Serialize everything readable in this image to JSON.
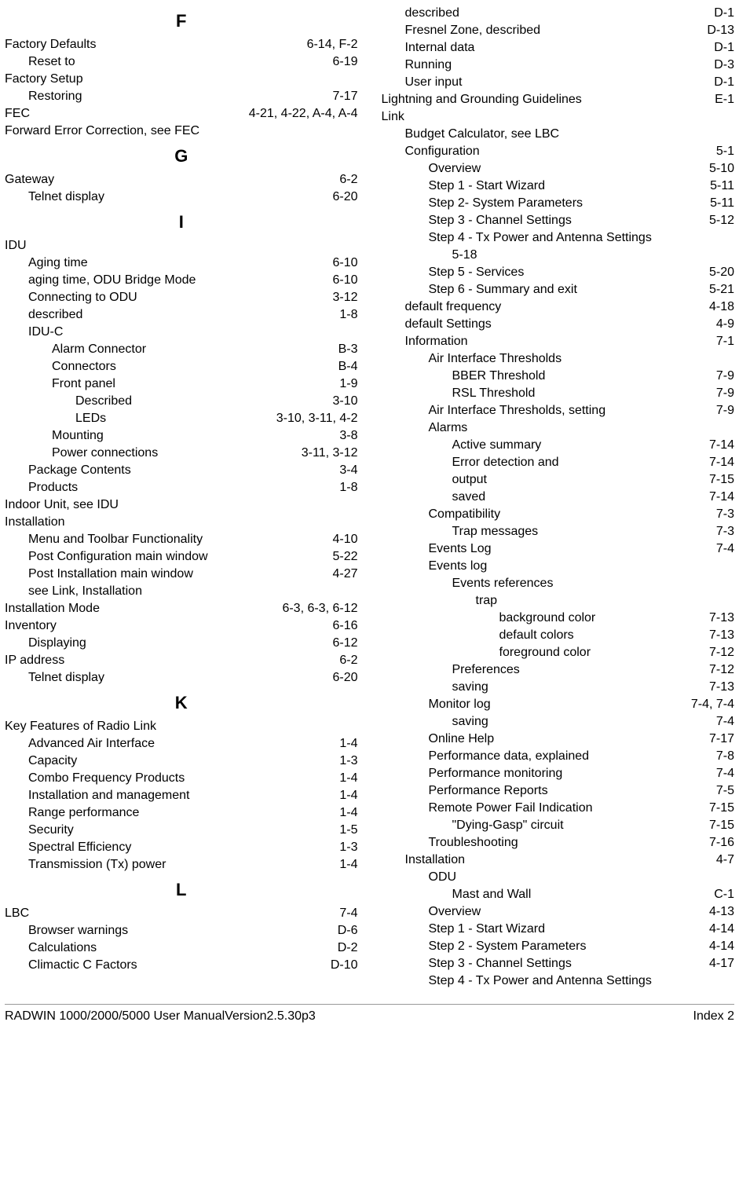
{
  "footer": {
    "left": "RADWIN 1000/2000/5000 User ManualVersion2.5.30p3",
    "right": "Index 2"
  },
  "left_col": [
    {
      "type": "letter",
      "text": "F"
    },
    {
      "type": "row",
      "indent": 0,
      "label": "Factory Defaults",
      "page": "6-14, F-2"
    },
    {
      "type": "row",
      "indent": 1,
      "label": "Reset to",
      "page": "6-19"
    },
    {
      "type": "row",
      "indent": 0,
      "label": "Factory Setup",
      "page": ""
    },
    {
      "type": "row",
      "indent": 1,
      "label": "Restoring",
      "page": "7-17"
    },
    {
      "type": "row",
      "indent": 0,
      "label": "FEC",
      "page": "4-21, 4-22, A-4, A-4"
    },
    {
      "type": "row",
      "indent": 0,
      "label": "Forward Error Correction, see FEC",
      "page": ""
    },
    {
      "type": "letter",
      "text": "G"
    },
    {
      "type": "row",
      "indent": 0,
      "label": "Gateway",
      "page": "6-2"
    },
    {
      "type": "row",
      "indent": 1,
      "label": "Telnet display",
      "page": "6-20"
    },
    {
      "type": "letter",
      "text": "I"
    },
    {
      "type": "row",
      "indent": 0,
      "label": "IDU",
      "page": ""
    },
    {
      "type": "row",
      "indent": 1,
      "label": "Aging time",
      "page": "6-10"
    },
    {
      "type": "row",
      "indent": 1,
      "label": "aging time, ODU Bridge Mode",
      "page": "6-10"
    },
    {
      "type": "row",
      "indent": 1,
      "label": "Connecting to ODU",
      "page": "3-12"
    },
    {
      "type": "row",
      "indent": 1,
      "label": "described",
      "page": "1-8"
    },
    {
      "type": "row",
      "indent": 1,
      "label": "IDU-C",
      "page": ""
    },
    {
      "type": "row",
      "indent": 2,
      "label": "Alarm Connector",
      "page": "B-3"
    },
    {
      "type": "row",
      "indent": 2,
      "label": "Connectors",
      "page": "B-4"
    },
    {
      "type": "row",
      "indent": 2,
      "label": "Front panel",
      "page": "1-9"
    },
    {
      "type": "row",
      "indent": 3,
      "label": "Described",
      "page": "3-10"
    },
    {
      "type": "row",
      "indent": 3,
      "label": "LEDs",
      "page": "3-10, 3-11, 4-2"
    },
    {
      "type": "row",
      "indent": 2,
      "label": "Mounting",
      "page": "3-8"
    },
    {
      "type": "row",
      "indent": 2,
      "label": "Power connections",
      "page": "3-11, 3-12"
    },
    {
      "type": "row",
      "indent": 1,
      "label": "Package Contents",
      "page": "3-4"
    },
    {
      "type": "row",
      "indent": 1,
      "label": "Products",
      "page": "1-8"
    },
    {
      "type": "row",
      "indent": 0,
      "label": "Indoor Unit, see IDU",
      "page": ""
    },
    {
      "type": "row",
      "indent": 0,
      "label": "Installation",
      "page": ""
    },
    {
      "type": "row",
      "indent": 1,
      "label": "Menu and Toolbar Functionality",
      "page": "4-10"
    },
    {
      "type": "row",
      "indent": 1,
      "label": "Post Configuration main window",
      "page": "5-22"
    },
    {
      "type": "row",
      "indent": 1,
      "label": "Post Installation main window",
      "page": "4-27"
    },
    {
      "type": "row",
      "indent": 1,
      "label": "see Link, Installation",
      "page": ""
    },
    {
      "type": "row",
      "indent": 0,
      "label": "Installation Mode",
      "page": "6-3, 6-3, 6-12"
    },
    {
      "type": "row",
      "indent": 0,
      "label": "Inventory",
      "page": "6-16"
    },
    {
      "type": "row",
      "indent": 1,
      "label": "Displaying",
      "page": "6-12"
    },
    {
      "type": "row",
      "indent": 0,
      "label": "IP address",
      "page": "6-2"
    },
    {
      "type": "row",
      "indent": 1,
      "label": "Telnet display",
      "page": "6-20"
    },
    {
      "type": "letter",
      "text": "K"
    },
    {
      "type": "row",
      "indent": 0,
      "label": "Key Features of Radio Link",
      "page": ""
    },
    {
      "type": "row",
      "indent": 1,
      "label": "Advanced Air Interface",
      "page": "1-4"
    },
    {
      "type": "row",
      "indent": 1,
      "label": "Capacity",
      "page": "1-3"
    },
    {
      "type": "row",
      "indent": 1,
      "label": "Combo Frequency Products",
      "page": "1-4"
    },
    {
      "type": "row",
      "indent": 1,
      "label": "Installation and management",
      "page": "1-4"
    },
    {
      "type": "row",
      "indent": 1,
      "label": "Range performance",
      "page": "1-4"
    },
    {
      "type": "row",
      "indent": 1,
      "label": "Security",
      "page": "1-5"
    },
    {
      "type": "row",
      "indent": 1,
      "label": "Spectral Efficiency",
      "page": "1-3"
    },
    {
      "type": "row",
      "indent": 1,
      "label": "Transmission (Tx) power",
      "page": "1-4"
    },
    {
      "type": "letter",
      "text": "L"
    },
    {
      "type": "row",
      "indent": 0,
      "label": "LBC",
      "page": "7-4"
    },
    {
      "type": "row",
      "indent": 1,
      "label": "Browser warnings",
      "page": "D-6"
    },
    {
      "type": "row",
      "indent": 1,
      "label": "Calculations",
      "page": "D-2"
    },
    {
      "type": "row",
      "indent": 1,
      "label": "Climactic C Factors",
      "page": "D-10"
    }
  ],
  "right_col": [
    {
      "type": "row",
      "indent": 1,
      "label": "described",
      "page": "D-1"
    },
    {
      "type": "row",
      "indent": 1,
      "label": "Fresnel Zone, described",
      "page": "D-13"
    },
    {
      "type": "row",
      "indent": 1,
      "label": "Internal data",
      "page": "D-1"
    },
    {
      "type": "row",
      "indent": 1,
      "label": "Running",
      "page": "D-3"
    },
    {
      "type": "row",
      "indent": 1,
      "label": "User input",
      "page": "D-1"
    },
    {
      "type": "row",
      "indent": 0,
      "label": "Lightning and Grounding Guidelines",
      "page": "E-1"
    },
    {
      "type": "row",
      "indent": 0,
      "label": "Link",
      "page": ""
    },
    {
      "type": "row",
      "indent": 1,
      "label": "Budget Calculator, see LBC",
      "page": ""
    },
    {
      "type": "row",
      "indent": 1,
      "label": "Configuration",
      "page": "5-1"
    },
    {
      "type": "row",
      "indent": 2,
      "label": "Overview",
      "page": "5-10"
    },
    {
      "type": "row",
      "indent": 2,
      "label": "Step 1 - Start Wizard",
      "page": "5-11"
    },
    {
      "type": "row",
      "indent": 2,
      "label": "Step 2- System Parameters",
      "page": "5-11"
    },
    {
      "type": "row",
      "indent": 2,
      "label": "Step 3 - Channel Settings",
      "page": "5-12"
    },
    {
      "type": "row",
      "indent": 2,
      "label": "Step 4 - Tx Power and Antenna Settings",
      "page": ""
    },
    {
      "type": "row",
      "indent": 3,
      "label": "5-18",
      "page": ""
    },
    {
      "type": "row",
      "indent": 2,
      "label": "Step 5 - Services",
      "page": "5-20"
    },
    {
      "type": "row",
      "indent": 2,
      "label": "Step 6 - Summary and exit",
      "page": "5-21"
    },
    {
      "type": "row",
      "indent": 1,
      "label": "default frequency",
      "page": "4-18"
    },
    {
      "type": "row",
      "indent": 1,
      "label": "default Settings",
      "page": "4-9"
    },
    {
      "type": "row",
      "indent": 1,
      "label": "Information",
      "page": "7-1"
    },
    {
      "type": "row",
      "indent": 2,
      "label": "Air Interface Thresholds",
      "page": ""
    },
    {
      "type": "row",
      "indent": 3,
      "label": "BBER Threshold",
      "page": "7-9"
    },
    {
      "type": "row",
      "indent": 3,
      "label": "RSL Threshold",
      "page": "7-9"
    },
    {
      "type": "row",
      "indent": 2,
      "label": "Air Interface Thresholds, setting",
      "page": "7-9"
    },
    {
      "type": "row",
      "indent": 2,
      "label": "Alarms",
      "page": ""
    },
    {
      "type": "row",
      "indent": 3,
      "label": "Active summary",
      "page": "7-14"
    },
    {
      "type": "row",
      "indent": 3,
      "label": "Error detection and",
      "page": "7-14"
    },
    {
      "type": "row",
      "indent": 3,
      "label": "output",
      "page": "7-15"
    },
    {
      "type": "row",
      "indent": 3,
      "label": "saved",
      "page": "7-14"
    },
    {
      "type": "row",
      "indent": 2,
      "label": "Compatibility",
      "page": "7-3"
    },
    {
      "type": "row",
      "indent": 3,
      "label": "Trap messages",
      "page": "7-3"
    },
    {
      "type": "row",
      "indent": 2,
      "label": "Events Log",
      "page": "7-4"
    },
    {
      "type": "row",
      "indent": 2,
      "label": "Events log",
      "page": ""
    },
    {
      "type": "row",
      "indent": 3,
      "label": "Events references",
      "page": ""
    },
    {
      "type": "row",
      "indent": 4,
      "label": "trap",
      "page": ""
    },
    {
      "type": "row",
      "indent": 5,
      "label": "background color",
      "page": "7-13"
    },
    {
      "type": "row",
      "indent": 5,
      "label": "default colors",
      "page": "7-13"
    },
    {
      "type": "row",
      "indent": 5,
      "label": "foreground color",
      "page": "7-12"
    },
    {
      "type": "row",
      "indent": 3,
      "label": "Preferences",
      "page": "7-12"
    },
    {
      "type": "row",
      "indent": 3,
      "label": "saving",
      "page": "7-13"
    },
    {
      "type": "row",
      "indent": 2,
      "label": "Monitor log",
      "page": "7-4, 7-4"
    },
    {
      "type": "row",
      "indent": 3,
      "label": "saving",
      "page": "7-4"
    },
    {
      "type": "row",
      "indent": 2,
      "label": "Online Help",
      "page": "7-17"
    },
    {
      "type": "row",
      "indent": 2,
      "label": "Performance data, explained",
      "page": "7-8"
    },
    {
      "type": "row",
      "indent": 2,
      "label": "Performance monitoring",
      "page": "7-4"
    },
    {
      "type": "row",
      "indent": 2,
      "label": "Performance Reports",
      "page": "7-5"
    },
    {
      "type": "row",
      "indent": 2,
      "label": "Remote Power Fail Indication",
      "page": "7-15"
    },
    {
      "type": "row",
      "indent": 3,
      "label": "\"Dying-Gasp\" circuit",
      "page": "7-15"
    },
    {
      "type": "row",
      "indent": 2,
      "label": "Troubleshooting",
      "page": "7-16"
    },
    {
      "type": "row",
      "indent": 1,
      "label": "Installation",
      "page": "4-7"
    },
    {
      "type": "row",
      "indent": 2,
      "label": "ODU",
      "page": ""
    },
    {
      "type": "row",
      "indent": 3,
      "label": "Mast and Wall",
      "page": "C-1"
    },
    {
      "type": "row",
      "indent": 2,
      "label": "Overview",
      "page": "4-13"
    },
    {
      "type": "row",
      "indent": 2,
      "label": "Step 1 - Start Wizard",
      "page": "4-14"
    },
    {
      "type": "row",
      "indent": 2,
      "label": "Step 2 - System Parameters",
      "page": "4-14"
    },
    {
      "type": "row",
      "indent": 2,
      "label": "Step 3 - Channel Settings",
      "page": "4-17"
    },
    {
      "type": "row",
      "indent": 2,
      "label": "Step 4 - Tx Power and Antenna Settings",
      "page": ""
    }
  ]
}
